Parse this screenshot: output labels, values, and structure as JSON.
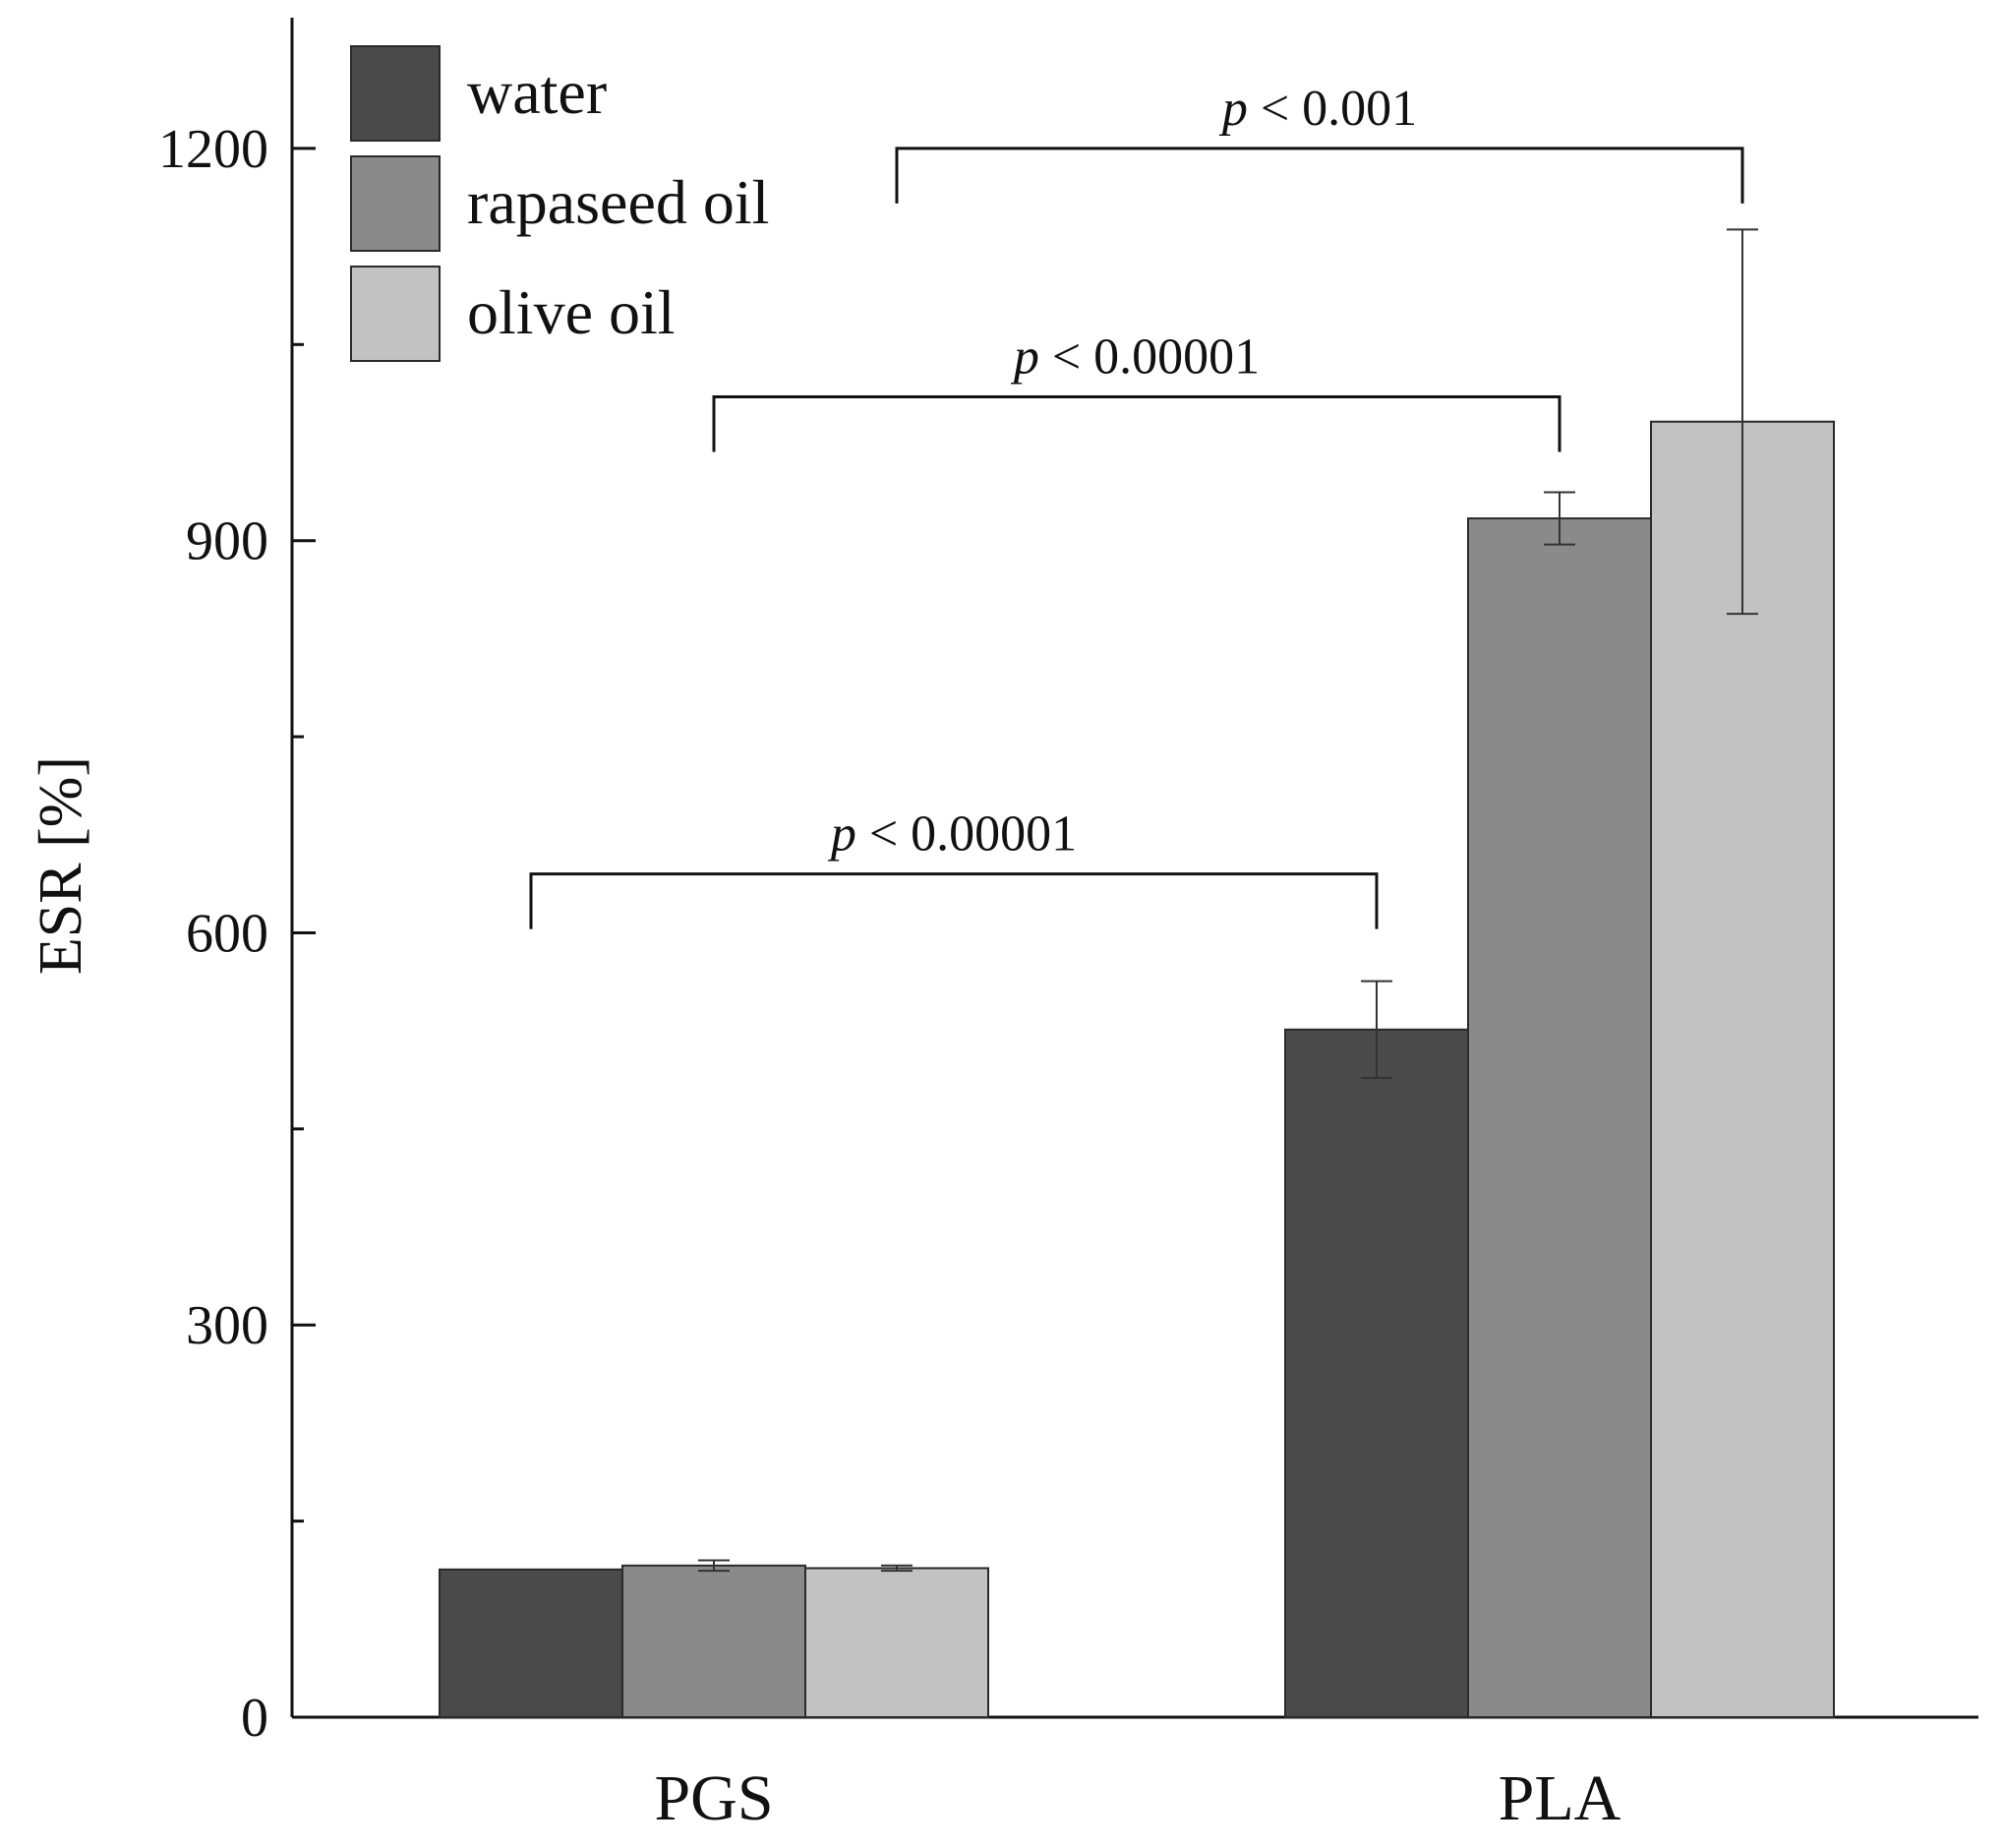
{
  "chart_data": {
    "type": "bar",
    "title": "",
    "xlabel": "",
    "ylabel": "ESR [%]",
    "ylim": [
      0,
      1300
    ],
    "yticks": [
      0,
      300,
      600,
      900,
      1200
    ],
    "minor_yticks": [
      150,
      450,
      750,
      1050
    ],
    "categories": [
      "PGS",
      "PLA"
    ],
    "series": [
      {
        "name": "water",
        "color": "#4a4a4a",
        "values": [
          113,
          526
        ],
        "errors": [
          0,
          37
        ]
      },
      {
        "name": "rapaseed oil",
        "color": "#8a8a8a",
        "values": [
          116,
          917
        ],
        "errors": [
          4,
          20
        ]
      },
      {
        "name": "olive oil",
        "color": "#c2c2c2",
        "values": [
          114,
          991
        ],
        "errors": [
          2,
          147
        ]
      }
    ],
    "legend_position": "top-left",
    "significance": [
      {
        "label_prefix": "p",
        "label_rest": " < 0.00001",
        "series": "water",
        "from_category": "PGS",
        "to_category": "PLA",
        "level": 645
      },
      {
        "label_prefix": "p",
        "label_rest": " < 0.00001",
        "series": "rapaseed oil",
        "from_category": "PGS",
        "to_category": "PLA",
        "level": 1010
      },
      {
        "label_prefix": "p",
        "label_rest": " < 0.001",
        "series": "olive oil",
        "from_category": "PGS",
        "to_category": "PLA",
        "level": 1200
      }
    ]
  }
}
